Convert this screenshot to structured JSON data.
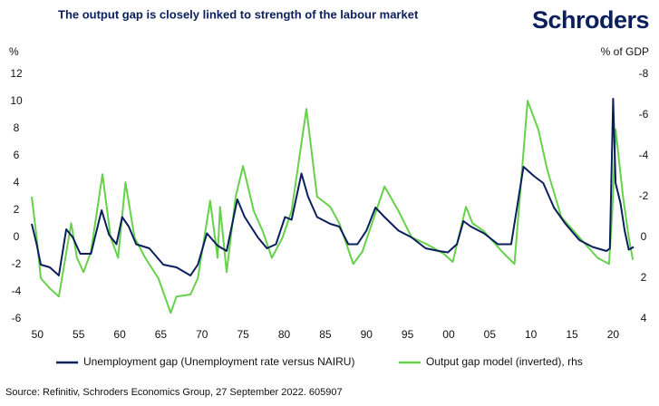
{
  "chart_data": {
    "type": "line",
    "title": "The output gap is closely linked to strength of the labour market",
    "logo": "Schroders",
    "y_label": "%",
    "y2_label": "% of GDP",
    "source": "Source: Refinitiv, Schroders Economics Group, 27 September 2022. 605907",
    "xlim": [
      1949.3,
      2022.6
    ],
    "xticks": [
      {
        "value": 1950,
        "label": "50"
      },
      {
        "value": 1955,
        "label": "55"
      },
      {
        "value": 1960,
        "label": "60"
      },
      {
        "value": 1965,
        "label": "65"
      },
      {
        "value": 1970,
        "label": "70"
      },
      {
        "value": 1975,
        "label": "75"
      },
      {
        "value": 1980,
        "label": "80"
      },
      {
        "value": 1985,
        "label": "85"
      },
      {
        "value": 1990,
        "label": "90"
      },
      {
        "value": 1995,
        "label": "95"
      },
      {
        "value": 2000,
        "label": "00"
      },
      {
        "value": 2005,
        "label": "05"
      },
      {
        "value": 2010,
        "label": "10"
      },
      {
        "value": 2015,
        "label": "15"
      },
      {
        "value": 2020,
        "label": "20"
      }
    ],
    "ylim": [
      -6,
      12
    ],
    "yticks": [
      -6,
      -4,
      -2,
      0,
      2,
      4,
      6,
      8,
      10,
      12
    ],
    "y2lim": [
      4,
      -8
    ],
    "y2ticks": [
      4,
      2,
      0,
      -2,
      -4,
      -6,
      -8
    ],
    "grid": false,
    "series": [
      {
        "name": "Unemployment gap (Unemployment rate versus NAIRU)",
        "color": "#0b1f5c",
        "x": [
          1949.3,
          1949.9,
          1950.4,
          1951.5,
          1952.6,
          1953.5,
          1954.3,
          1955.2,
          1956.5,
          1957.8,
          1958.7,
          1959.6,
          1960.3,
          1961.1,
          1962.0,
          1963.6,
          1965.3,
          1966.9,
          1968.6,
          1969.5,
          1970.6,
          1971.9,
          1973.0,
          1974.3,
          1975.2,
          1976.8,
          1977.9,
          1979.0,
          1980.1,
          1980.9,
          1982.1,
          1982.9,
          1984.0,
          1985.6,
          1986.7,
          1987.8,
          1988.9,
          1990.0,
          1991.1,
          1992.2,
          1993.9,
          1995.5,
          1997.2,
          1998.8,
          1999.9,
          2001.0,
          2001.8,
          2002.7,
          2004.3,
          2006.0,
          2007.6,
          2009.1,
          2010.4,
          2011.5,
          2012.8,
          2014.2,
          2015.9,
          2017.5,
          2019.2,
          2019.6,
          2020.0,
          2020.3,
          2020.9,
          2021.4,
          2021.9,
          2022.5
        ],
        "values": [
          1.0,
          -0.5,
          -2.0,
          -2.2,
          -2.8,
          0.6,
          0,
          -1.2,
          -1.2,
          2.0,
          0.2,
          -0.5,
          1.5,
          0.8,
          -0.5,
          -0.8,
          -2.0,
          -2.2,
          -2.8,
          -2.0,
          0.3,
          -0.6,
          -1.0,
          2.8,
          1.5,
          0,
          -0.8,
          -0.5,
          1.5,
          1.3,
          4.7,
          3.0,
          1.5,
          1.0,
          0.8,
          -0.5,
          -0.5,
          0.5,
          2.2,
          1.5,
          0.5,
          0,
          -0.8,
          -1.0,
          -1.1,
          -0.5,
          1.2,
          0.8,
          0.3,
          -0.5,
          -0.5,
          5.2,
          4.5,
          4.0,
          2.2,
          1.0,
          -0.2,
          -0.7,
          -1.0,
          -0.8,
          10.2,
          4.0,
          2.5,
          0.5,
          -0.9,
          -0.7
        ]
      },
      {
        "name": "Output gap model (inverted), rhs",
        "color": "#66d14a",
        "axis": "y2",
        "x": [
          1949.3,
          1949.9,
          1950.4,
          1951.5,
          1952.6,
          1954.1,
          1954.8,
          1955.6,
          1956.5,
          1957.9,
          1958.9,
          1959.8,
          1960.7,
          1961.8,
          1963.1,
          1964.7,
          1966.2,
          1966.9,
          1968.6,
          1969.5,
          1971.0,
          1971.9,
          1972.2,
          1973.0,
          1974.1,
          1975.0,
          1976.3,
          1977.4,
          1978.5,
          1979.8,
          1980.9,
          1982.7,
          1984.0,
          1985.6,
          1986.7,
          1988.4,
          1989.5,
          1992.2,
          1993.9,
          1995.5,
          1997.2,
          1999.4,
          2000.5,
          2002.1,
          2002.9,
          2004.3,
          2006.5,
          2008.0,
          2009.6,
          2010.9,
          2012.0,
          2013.7,
          2015.9,
          2018.1,
          2019.5,
          2019.9,
          2020.3,
          2021.2,
          2021.9,
          2022.4
        ],
        "values": [
          -2.0,
          0,
          2.0,
          2.5,
          2.9,
          -0.7,
          1.0,
          1.7,
          0.7,
          -3.1,
          0,
          1.0,
          -2.7,
          0,
          1.0,
          2.0,
          3.7,
          2.9,
          2.8,
          2.0,
          -1.8,
          1.0,
          -1.5,
          1.7,
          -2.0,
          -3.5,
          -1.3,
          -0.3,
          1.0,
          0,
          -1.3,
          -6.3,
          -2.0,
          -1.5,
          -0.7,
          1.3,
          0.7,
          -2.5,
          -1.3,
          0,
          0.3,
          0.8,
          1.2,
          -1.5,
          -0.7,
          -0.3,
          0.7,
          1.3,
          -6.7,
          -5.3,
          -3.3,
          -1.0,
          0,
          1.0,
          1.3,
          -1.3,
          -5.3,
          -2.0,
          0,
          1.1
        ]
      }
    ]
  }
}
